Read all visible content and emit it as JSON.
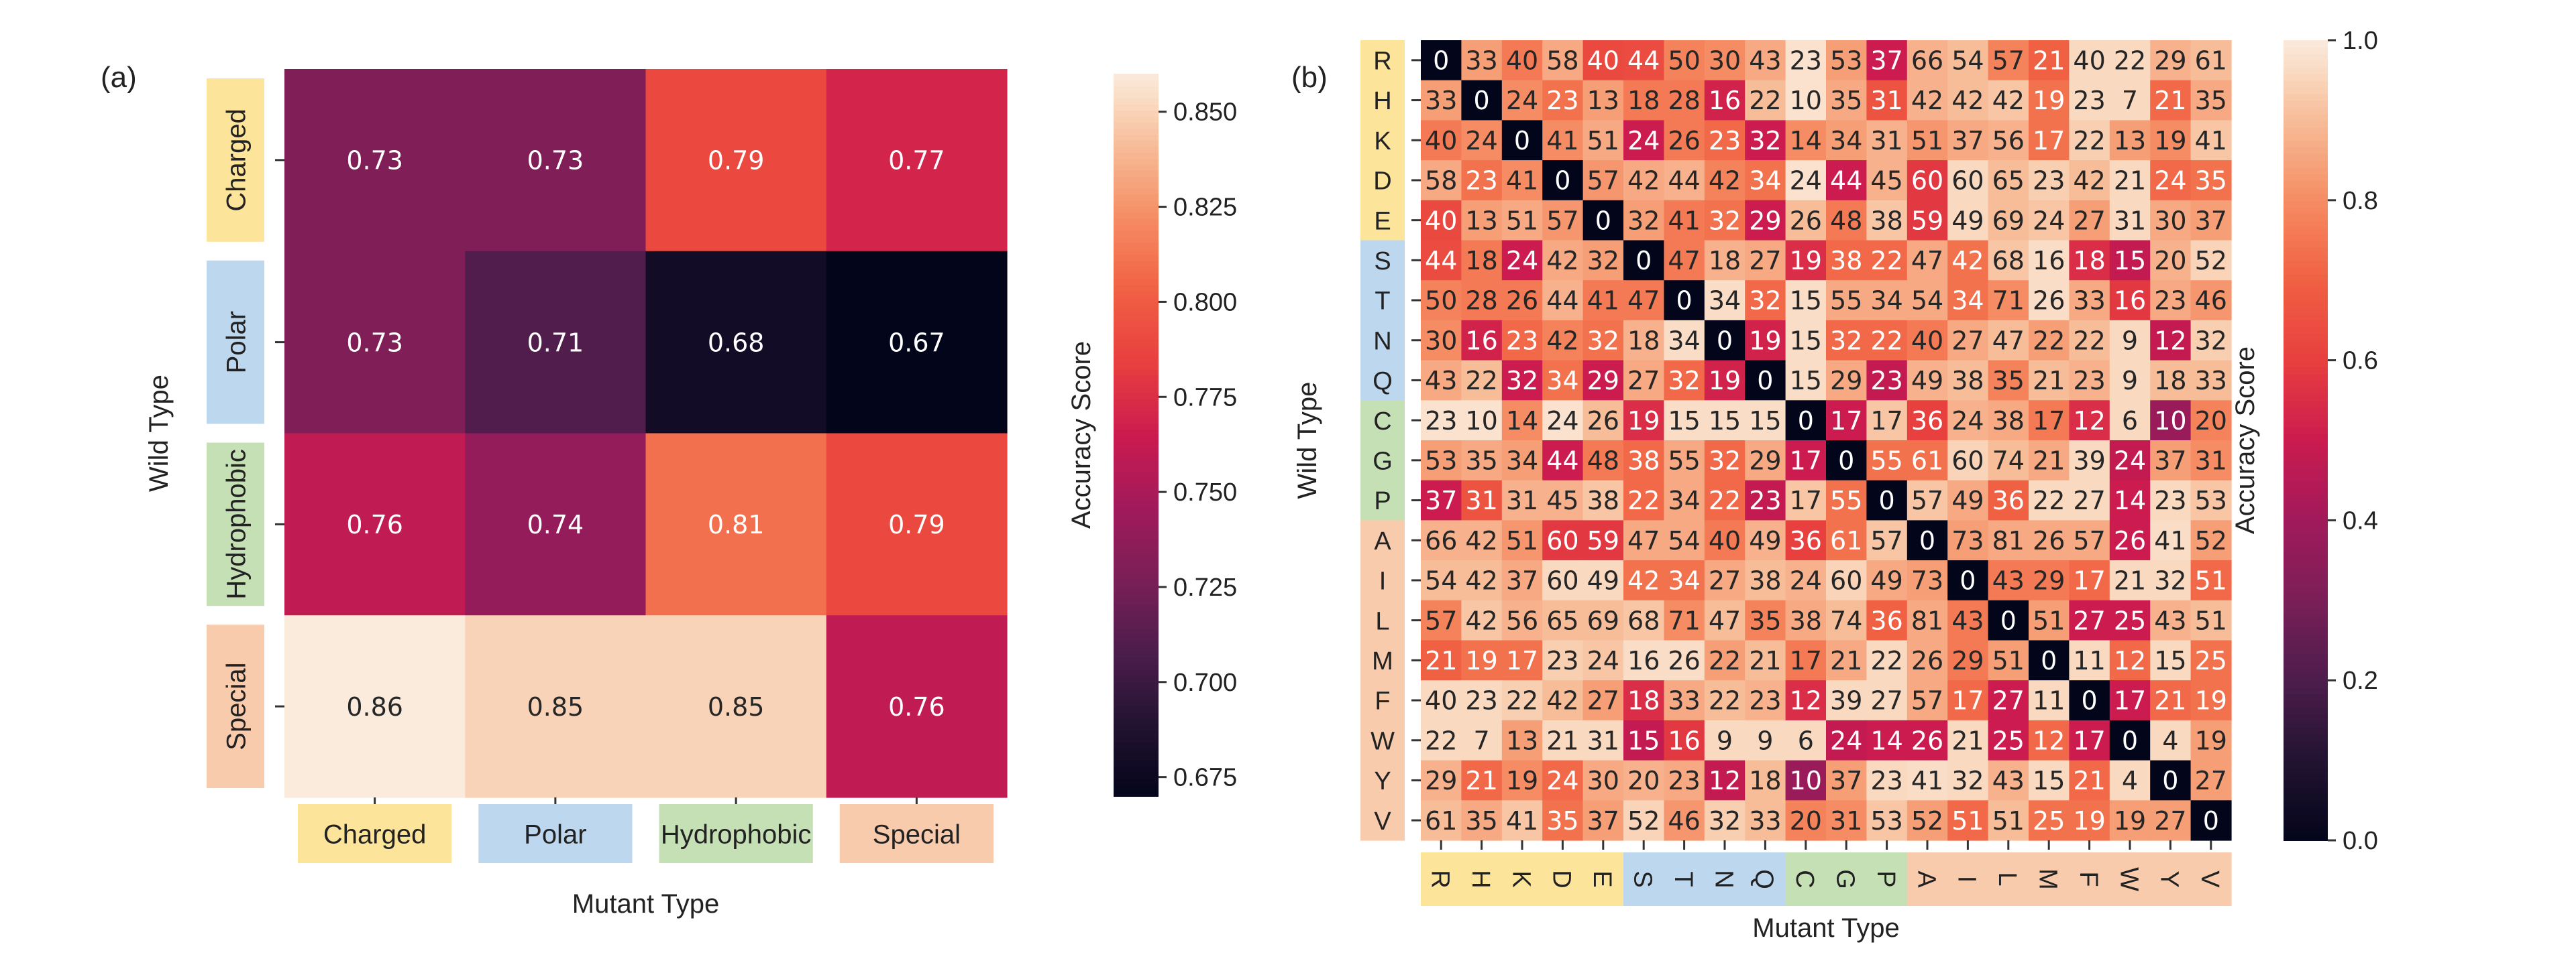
{
  "chart_data": [
    {
      "type": "heatmap",
      "panel_label": "(a)",
      "xlabel": "Mutant Type",
      "ylabel": "Wild Type",
      "colorbar_label": "Accuracy Score",
      "colormap": "rocket",
      "color_range": [
        0.67,
        0.86
      ],
      "colorbar_ticks": [
        "0.675",
        "0.700",
        "0.725",
        "0.750",
        "0.775",
        "0.800",
        "0.825",
        "0.850"
      ],
      "categories": [
        "Charged",
        "Polar",
        "Hydrophobic",
        "Special"
      ],
      "category_colors": [
        "#fde49b",
        "#bdd7ee",
        "#c5e0b4",
        "#f8cbad"
      ],
      "values": [
        [
          0.73,
          0.73,
          0.79,
          0.77
        ],
        [
          0.73,
          0.71,
          0.68,
          0.67
        ],
        [
          0.76,
          0.74,
          0.81,
          0.79
        ],
        [
          0.86,
          0.85,
          0.85,
          0.76
        ]
      ]
    },
    {
      "type": "heatmap",
      "panel_label": "(b)",
      "xlabel": "Mutant Type",
      "ylabel": "Wild Type",
      "colorbar_label": "Accuracy Score",
      "colormap": "rocket",
      "color_range": [
        0.0,
        1.0
      ],
      "colorbar_ticks": [
        "0.0",
        "0.2",
        "0.4",
        "0.6",
        "0.8",
        "1.0"
      ],
      "categories": [
        "R",
        "H",
        "K",
        "D",
        "E",
        "S",
        "T",
        "N",
        "Q",
        "C",
        "G",
        "P",
        "A",
        "I",
        "L",
        "M",
        "F",
        "W",
        "Y",
        "V"
      ],
      "category_groups": [
        "#fde49b",
        "#fde49b",
        "#fde49b",
        "#fde49b",
        "#fde49b",
        "#bdd7ee",
        "#bdd7ee",
        "#bdd7ee",
        "#bdd7ee",
        "#c5e0b4",
        "#c5e0b4",
        "#c5e0b4",
        "#f8cbad",
        "#f8cbad",
        "#f8cbad",
        "#f8cbad",
        "#f8cbad",
        "#f8cbad",
        "#f8cbad",
        "#f8cbad"
      ],
      "annotations": [
        [
          0,
          33,
          40,
          58,
          40,
          44,
          50,
          30,
          43,
          23,
          53,
          37,
          66,
          54,
          57,
          21,
          40,
          22,
          29,
          61
        ],
        [
          33,
          0,
          24,
          23,
          13,
          18,
          28,
          16,
          22,
          10,
          35,
          31,
          42,
          42,
          42,
          19,
          23,
          7,
          21,
          35
        ],
        [
          40,
          24,
          0,
          41,
          51,
          24,
          26,
          23,
          32,
          14,
          34,
          31,
          51,
          37,
          56,
          17,
          22,
          13,
          19,
          41
        ],
        [
          58,
          23,
          41,
          0,
          57,
          42,
          44,
          42,
          34,
          24,
          44,
          45,
          60,
          60,
          65,
          23,
          42,
          21,
          24,
          35
        ],
        [
          40,
          13,
          51,
          57,
          0,
          32,
          41,
          32,
          29,
          26,
          48,
          38,
          59,
          49,
          69,
          24,
          27,
          31,
          30,
          37
        ],
        [
          44,
          18,
          24,
          42,
          32,
          0,
          47,
          18,
          27,
          19,
          38,
          22,
          47,
          42,
          68,
          16,
          18,
          15,
          20,
          52
        ],
        [
          50,
          28,
          26,
          44,
          41,
          47,
          0,
          34,
          32,
          15,
          55,
          34,
          54,
          34,
          71,
          26,
          33,
          16,
          23,
          46
        ],
        [
          30,
          16,
          23,
          42,
          32,
          18,
          34,
          0,
          19,
          15,
          32,
          22,
          40,
          27,
          47,
          22,
          22,
          9,
          12,
          32
        ],
        [
          43,
          22,
          32,
          34,
          29,
          27,
          32,
          19,
          0,
          15,
          29,
          23,
          49,
          38,
          35,
          21,
          23,
          9,
          18,
          33
        ],
        [
          23,
          10,
          14,
          24,
          26,
          19,
          15,
          15,
          15,
          0,
          17,
          17,
          36,
          24,
          38,
          17,
          12,
          6,
          10,
          20
        ],
        [
          53,
          35,
          34,
          44,
          48,
          38,
          55,
          32,
          29,
          17,
          0,
          55,
          61,
          60,
          74,
          21,
          39,
          24,
          37,
          31
        ],
        [
          37,
          31,
          31,
          45,
          38,
          22,
          34,
          22,
          23,
          17,
          55,
          0,
          57,
          49,
          36,
          22,
          27,
          14,
          23,
          53
        ],
        [
          66,
          42,
          51,
          60,
          59,
          47,
          54,
          40,
          49,
          36,
          61,
          57,
          0,
          73,
          81,
          26,
          57,
          26,
          41,
          52
        ],
        [
          54,
          42,
          37,
          60,
          49,
          42,
          34,
          27,
          38,
          24,
          60,
          49,
          73,
          0,
          43,
          29,
          17,
          21,
          32,
          51
        ],
        [
          57,
          42,
          56,
          65,
          69,
          68,
          71,
          47,
          35,
          38,
          74,
          36,
          81,
          43,
          0,
          51,
          27,
          25,
          43,
          51
        ],
        [
          21,
          19,
          17,
          23,
          24,
          16,
          26,
          22,
          21,
          17,
          21,
          22,
          26,
          29,
          51,
          0,
          11,
          12,
          15,
          25
        ],
        [
          40,
          23,
          22,
          42,
          27,
          18,
          33,
          22,
          23,
          12,
          39,
          27,
          57,
          17,
          27,
          11,
          0,
          17,
          21,
          19
        ],
        [
          22,
          7,
          13,
          21,
          31,
          15,
          16,
          9,
          9,
          6,
          24,
          14,
          26,
          21,
          25,
          12,
          17,
          0,
          4,
          19
        ],
        [
          29,
          21,
          19,
          24,
          30,
          20,
          23,
          12,
          18,
          10,
          37,
          23,
          41,
          32,
          43,
          15,
          21,
          4,
          0,
          27
        ],
        [
          61,
          35,
          41,
          35,
          37,
          52,
          46,
          32,
          33,
          20,
          31,
          53,
          52,
          51,
          51,
          25,
          19,
          19,
          27,
          0
        ]
      ],
      "values": [
        [
          0,
          0.84,
          0.76,
          0.86,
          0.63,
          0.64,
          0.78,
          0.8,
          0.86,
          0.98,
          0.84,
          0.5,
          0.88,
          0.9,
          0.78,
          0.7,
          0.96,
          0.96,
          0.88,
          0.9
        ],
        [
          0.84,
          0,
          0.8,
          0.74,
          0.84,
          0.76,
          0.76,
          0.52,
          0.9,
          0.98,
          0.86,
          0.66,
          0.88,
          0.9,
          0.92,
          0.74,
          0.96,
          0.96,
          0.72,
          0.86
        ],
        [
          0.76,
          0.8,
          0,
          0.8,
          0.86,
          0.5,
          0.76,
          0.72,
          0.5,
          0.8,
          0.84,
          0.88,
          0.82,
          0.86,
          0.88,
          0.74,
          0.94,
          0.84,
          0.8,
          0.92
        ],
        [
          0.86,
          0.74,
          0.8,
          0,
          0.82,
          0.86,
          0.88,
          0.78,
          0.74,
          0.98,
          0.5,
          0.88,
          0.58,
          0.96,
          0.9,
          0.94,
          0.9,
          0.96,
          0.72,
          0.74
        ],
        [
          0.63,
          0.84,
          0.86,
          0.82,
          0,
          0.84,
          0.76,
          0.74,
          0.5,
          0.9,
          0.76,
          0.92,
          0.58,
          0.96,
          0.9,
          0.92,
          0.84,
          0.96,
          0.86,
          0.84
        ],
        [
          0.64,
          0.76,
          0.5,
          0.86,
          0.84,
          0,
          0.76,
          0.88,
          0.86,
          0.55,
          0.72,
          0.72,
          0.86,
          0.74,
          0.92,
          0.97,
          0.55,
          0.48,
          0.88,
          0.95
        ],
        [
          0.78,
          0.76,
          0.76,
          0.88,
          0.76,
          0.76,
          0,
          0.97,
          0.72,
          0.97,
          0.86,
          0.86,
          0.86,
          0.74,
          0.8,
          0.97,
          0.86,
          0.58,
          0.86,
          0.82
        ],
        [
          0.8,
          0.52,
          0.72,
          0.78,
          0.74,
          0.88,
          0.97,
          0,
          0.52,
          0.97,
          0.72,
          0.72,
          0.76,
          0.86,
          0.9,
          0.84,
          0.9,
          0.96,
          0.48,
          0.94
        ],
        [
          0.86,
          0.9,
          0.5,
          0.74,
          0.5,
          0.86,
          0.72,
          0.52,
          0,
          0.97,
          0.86,
          0.48,
          0.88,
          0.9,
          0.78,
          0.9,
          0.88,
          0.96,
          0.9,
          0.9
        ],
        [
          0.98,
          0.98,
          0.8,
          0.98,
          0.9,
          0.55,
          0.97,
          0.97,
          0.97,
          0,
          0.5,
          0.92,
          0.6,
          0.88,
          0.86,
          0.76,
          0.55,
          0.96,
          0.38,
          0.78
        ],
        [
          0.84,
          0.86,
          0.84,
          0.5,
          0.76,
          0.72,
          0.86,
          0.72,
          0.86,
          0.5,
          0,
          0.74,
          0.74,
          0.95,
          0.9,
          0.86,
          0.96,
          0.48,
          0.84,
          0.8
        ],
        [
          0.5,
          0.66,
          0.88,
          0.88,
          0.92,
          0.72,
          0.86,
          0.72,
          0.48,
          0.92,
          0.74,
          0,
          0.92,
          0.86,
          0.7,
          0.96,
          0.96,
          0.5,
          0.96,
          0.92
        ],
        [
          0.88,
          0.88,
          0.82,
          0.58,
          0.58,
          0.86,
          0.86,
          0.76,
          0.88,
          0.6,
          0.74,
          0.92,
          0,
          0.84,
          0.86,
          0.86,
          0.86,
          0.5,
          0.97,
          0.84
        ],
        [
          0.9,
          0.9,
          0.86,
          0.96,
          0.96,
          0.74,
          0.74,
          0.86,
          0.9,
          0.88,
          0.95,
          0.86,
          0.84,
          0,
          0.76,
          0.76,
          0.72,
          0.96,
          0.96,
          0.72
        ],
        [
          0.78,
          0.92,
          0.88,
          0.9,
          0.9,
          0.92,
          0.8,
          0.9,
          0.78,
          0.86,
          0.9,
          0.7,
          0.86,
          0.76,
          0,
          0.84,
          0.5,
          0.5,
          0.88,
          0.9
        ],
        [
          0.7,
          0.74,
          0.74,
          0.94,
          0.92,
          0.97,
          0.97,
          0.84,
          0.9,
          0.76,
          0.86,
          0.96,
          0.86,
          0.76,
          0.84,
          0,
          0.96,
          0.72,
          0.96,
          0.74
        ],
        [
          0.96,
          0.96,
          0.94,
          0.9,
          0.84,
          0.55,
          0.86,
          0.9,
          0.88,
          0.55,
          0.96,
          0.96,
          0.86,
          0.72,
          0.5,
          0.96,
          0,
          0.5,
          0.72,
          0.74
        ],
        [
          0.96,
          0.96,
          0.84,
          0.96,
          0.96,
          0.48,
          0.58,
          0.96,
          0.96,
          0.96,
          0.48,
          0.5,
          0.5,
          0.96,
          0.5,
          0.72,
          0.5,
          0,
          0.96,
          0.84
        ],
        [
          0.88,
          0.72,
          0.8,
          0.72,
          0.86,
          0.88,
          0.86,
          0.48,
          0.9,
          0.38,
          0.84,
          0.96,
          0.97,
          0.96,
          0.88,
          0.96,
          0.72,
          0.96,
          0,
          0.84
        ],
        [
          0.9,
          0.86,
          0.92,
          0.74,
          0.84,
          0.95,
          0.82,
          0.94,
          0.9,
          0.78,
          0.8,
          0.92,
          0.84,
          0.72,
          0.9,
          0.74,
          0.74,
          0.84,
          0.84,
          0
        ]
      ]
    }
  ]
}
